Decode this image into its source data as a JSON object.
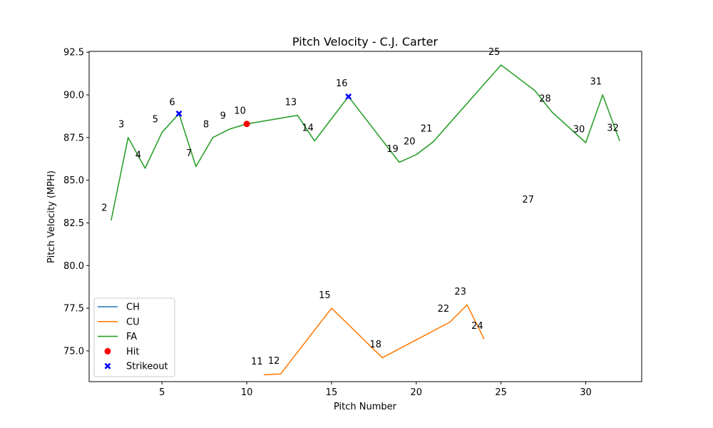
{
  "chart_data": {
    "type": "line",
    "title": "Pitch Velocity - C.J. Carter",
    "xlabel": "Pitch Number",
    "ylabel": "Pitch Velocity (MPH)",
    "xlim": [
      0.7,
      33.3
    ],
    "ylim": [
      73.2,
      92.55
    ],
    "xticks": [
      5,
      10,
      15,
      20,
      25,
      30
    ],
    "xtick_labels": [
      "5",
      "10",
      "15",
      "20",
      "25",
      "30"
    ],
    "yticks": [
      75.0,
      77.5,
      80.0,
      82.5,
      85.0,
      87.5,
      90.0,
      92.5
    ],
    "ytick_labels": [
      "75.0",
      "77.5",
      "80.0",
      "82.5",
      "85.0",
      "87.5",
      "90.0",
      "92.5"
    ],
    "grid": false,
    "legend_position": "lower-left",
    "series": [
      {
        "name": "CH",
        "color": "#1f77b4",
        "x": [],
        "y": []
      },
      {
        "name": "CU",
        "color": "#ff7f0e",
        "x": [
          11,
          12,
          15,
          18,
          22,
          23,
          24
        ],
        "y": [
          73.6,
          73.65,
          77.5,
          74.6,
          76.7,
          77.7,
          75.7
        ]
      },
      {
        "name": "FA",
        "color": "#2ca02c",
        "x": [
          2,
          3,
          4,
          5,
          6,
          7,
          8,
          9,
          10,
          13,
          14,
          16,
          19,
          20,
          21,
          25,
          27,
          28,
          30,
          31,
          32
        ],
        "y": [
          82.65,
          87.5,
          85.7,
          87.8,
          88.9,
          85.8,
          87.5,
          88.0,
          88.3,
          88.8,
          87.3,
          89.9,
          86.05,
          86.5,
          87.25,
          91.75,
          90.25,
          89.0,
          87.2,
          90.0,
          87.3
        ]
      }
    ],
    "markers": [
      {
        "name": "Hit",
        "color": "#ff0000",
        "shape": "circle",
        "points": [
          {
            "x": 10,
            "y": 88.3
          }
        ]
      },
      {
        "name": "Strikeout",
        "color": "#0000ff",
        "shape": "x",
        "points": [
          {
            "x": 6,
            "y": 88.9
          },
          {
            "x": 16,
            "y": 89.9
          }
        ]
      }
    ],
    "pitch_labels": [
      {
        "text": "2",
        "x": 1.6,
        "y": 83.2
      },
      {
        "text": "3",
        "x": 2.6,
        "y": 88.1
      },
      {
        "text": "4",
        "x": 3.6,
        "y": 86.3
      },
      {
        "text": "5",
        "x": 4.6,
        "y": 88.4
      },
      {
        "text": "6",
        "x": 5.6,
        "y": 89.4
      },
      {
        "text": "7",
        "x": 6.6,
        "y": 86.4
      },
      {
        "text": "8",
        "x": 7.6,
        "y": 88.1
      },
      {
        "text": "9",
        "x": 8.6,
        "y": 88.6
      },
      {
        "text": "10",
        "x": 9.6,
        "y": 88.9
      },
      {
        "text": "11",
        "x": 10.6,
        "y": 74.2
      },
      {
        "text": "12",
        "x": 11.6,
        "y": 74.25
      },
      {
        "text": "13",
        "x": 12.6,
        "y": 89.4
      },
      {
        "text": "14",
        "x": 13.6,
        "y": 87.9
      },
      {
        "text": "15",
        "x": 14.6,
        "y": 78.1
      },
      {
        "text": "16",
        "x": 15.6,
        "y": 90.5
      },
      {
        "text": "18",
        "x": 17.6,
        "y": 75.2
      },
      {
        "text": "19",
        "x": 18.6,
        "y": 86.65
      },
      {
        "text": "20",
        "x": 19.6,
        "y": 87.1
      },
      {
        "text": "21",
        "x": 20.6,
        "y": 87.85
      },
      {
        "text": "22",
        "x": 21.6,
        "y": 77.3
      },
      {
        "text": "23",
        "x": 22.6,
        "y": 78.3
      },
      {
        "text": "24",
        "x": 23.6,
        "y": 76.3
      },
      {
        "text": "25",
        "x": 24.6,
        "y": 92.35
      },
      {
        "text": "27",
        "x": 26.6,
        "y": 83.7
      },
      {
        "text": "28",
        "x": 27.6,
        "y": 89.6
      },
      {
        "text": "30",
        "x": 29.6,
        "y": 87.8
      },
      {
        "text": "31",
        "x": 30.6,
        "y": 90.6
      },
      {
        "text": "32",
        "x": 31.6,
        "y": 87.9
      }
    ]
  }
}
